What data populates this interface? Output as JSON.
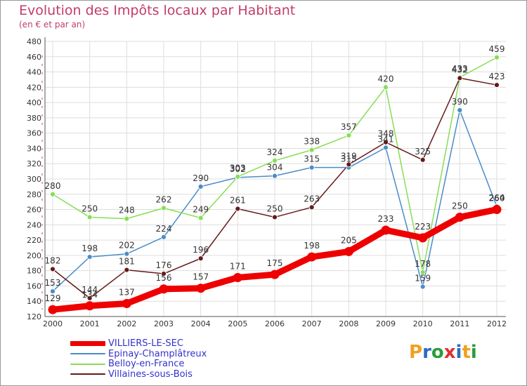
{
  "title": "Evolution des Impôts locaux par Habitant",
  "subtitle": "(en € et par an)",
  "logo": {
    "text": "Proxiti",
    "letters": [
      "P",
      "r",
      "o",
      "x",
      "i",
      "t",
      "i"
    ],
    "colors": [
      "#f0a020",
      "#2a6cc0",
      "#2a9d3c",
      "#e03030",
      "#2a6cc0",
      "#f0a020",
      "#2a9d3c"
    ]
  },
  "chart_data": {
    "type": "line",
    "title": "Evolution des Impôts locaux par Habitant",
    "subtitle": "(en € et par an)",
    "xlabel": "",
    "ylabel": "",
    "ylim": [
      120,
      480
    ],
    "yticks": [
      120,
      140,
      160,
      180,
      200,
      220,
      240,
      260,
      280,
      300,
      320,
      340,
      360,
      380,
      400,
      420,
      440,
      460,
      480
    ],
    "categories": [
      "2000",
      "2001",
      "2002",
      "2003",
      "2004",
      "2005",
      "2006",
      "2007",
      "2008",
      "2009",
      "2010",
      "2011",
      "2012"
    ],
    "grid": true,
    "legend_position": "bottom-left",
    "series": [
      {
        "name": "VILLIERS-LE-SEC",
        "color": "#ee0000",
        "thick": true,
        "values": [
          129,
          134,
          137,
          156,
          157,
          171,
          175,
          198,
          205,
          233,
          223,
          250,
          260
        ]
      },
      {
        "name": "Epinay-Champlâtreux",
        "color": "#4a8cc8",
        "thick": false,
        "values": [
          153,
          198,
          202,
          224,
          290,
          302,
          304,
          315,
          315,
          341,
          159,
          390,
          264
        ]
      },
      {
        "name": "Belloy-en-France",
        "color": "#88dd55",
        "thick": false,
        "values": [
          280,
          250,
          248,
          262,
          249,
          303,
          324,
          338,
          357,
          420,
          178,
          433,
          459
        ]
      },
      {
        "name": "Villaines-sous-Bois",
        "color": "#661a1a",
        "thick": false,
        "values": [
          182,
          144,
          181,
          176,
          196,
          261,
          250,
          263,
          319,
          348,
          325,
          432,
          423
        ]
      }
    ]
  }
}
